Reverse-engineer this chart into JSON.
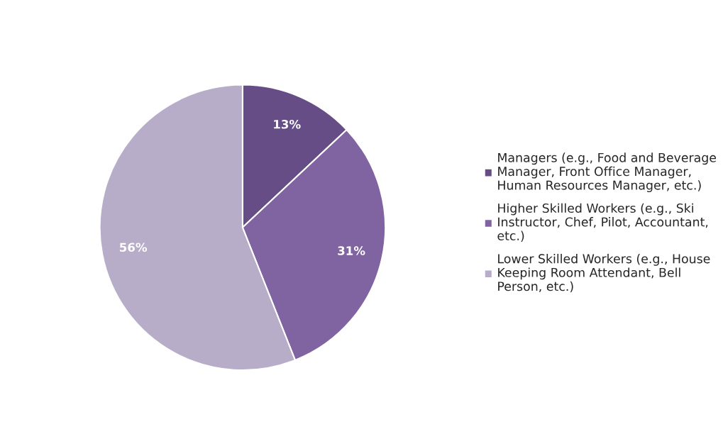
{
  "chart_data": {
    "type": "pie",
    "categories": [
      "Managers (e.g., Food and Beverage\nManager, Front Office Manager,\nHuman Resources Manager, etc.)",
      "Higher Skilled Workers (e.g., Ski\nInstructor, Chef, Pilot, Accountant,\netc.)",
      "Lower Skilled Workers (e.g., House\nKeeping Room Attendant, Bell\nPerson, etc.)"
    ],
    "values": [
      13,
      31,
      56
    ],
    "colors": [
      "#664d85",
      "#8064a2",
      "#b8adc9"
    ],
    "value_labels": [
      "13%",
      "31%",
      "56%"
    ],
    "legend": "right"
  }
}
